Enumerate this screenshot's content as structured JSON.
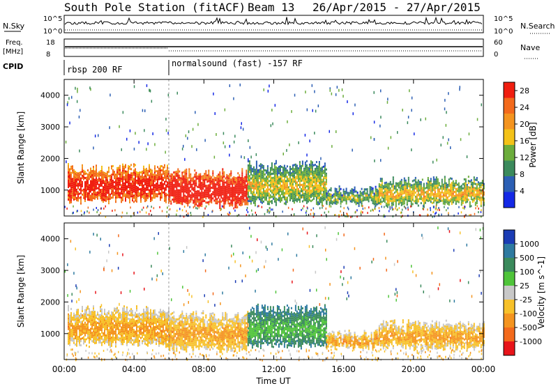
{
  "header": {
    "station": "South Pole Station (fitACF)",
    "beam": "Beam 13",
    "date_range": "26/Apr/2015 - 27/Apr/2015"
  },
  "strips": {
    "nsky_label": "N.Sky",
    "nsearch_label": "N.Search",
    "noise_ticks_left": [
      "10^5",
      "10^0"
    ],
    "noise_ticks_right": [
      "10^5",
      "10^0"
    ],
    "freq_label_1": "Freq.",
    "freq_label_2": "[MHz]",
    "freq_ticks": [
      "18",
      "8"
    ],
    "nave_label": "Nave",
    "nave_ticks": [
      "60",
      "0"
    ],
    "cpid_label": "CPID",
    "cpid_modes": [
      {
        "label": "rbsp 200 RF",
        "start_hour": 0,
        "end_hour": 6
      },
      {
        "label": "normalsound (fast) -157 RF",
        "start_hour": 6,
        "end_hour": 24
      }
    ]
  },
  "chart_data": [
    {
      "type": "heatmap",
      "quantity": "power",
      "xlabel": "Time UT",
      "ylabel": "Slant Range [km]",
      "x_ticks": [
        "00:00",
        "04:00",
        "08:00",
        "12:00",
        "16:00",
        "20:00",
        "00:00"
      ],
      "x_range_hours": [
        0,
        24
      ],
      "y_ticks": [
        1000,
        2000,
        3000,
        4000
      ],
      "y_range_km": [
        180,
        4500
      ],
      "colorbar": {
        "label": "Power [dB]",
        "ticks": [
          4,
          8,
          12,
          16,
          20,
          24,
          28
        ],
        "range": [
          0,
          30
        ],
        "colors": [
          "#1428e6",
          "#2c5fb4",
          "#3b8a5c",
          "#6cad3c",
          "#f3c218",
          "#f4941f",
          "#f36a1c",
          "#f01e10"
        ]
      },
      "echo_bands": [
        {
          "t0": 0.2,
          "t1": 6.0,
          "r0": 700,
          "r1": 1700,
          "level": 25
        },
        {
          "t0": 6.0,
          "t1": 10.5,
          "r0": 550,
          "r1": 1550,
          "level": 28
        },
        {
          "t0": 10.5,
          "t1": 15.0,
          "r0": 650,
          "r1": 1800,
          "level": 12
        },
        {
          "t0": 15.0,
          "t1": 18.0,
          "r0": 600,
          "r1": 1000,
          "level": 10
        },
        {
          "t0": 18.0,
          "t1": 24.0,
          "r0": 600,
          "r1": 1300,
          "level": 14
        }
      ]
    },
    {
      "type": "heatmap",
      "quantity": "velocity",
      "xlabel": "Time UT",
      "ylabel": "Slant Range [km]",
      "x_ticks": [
        "00:00",
        "04:00",
        "08:00",
        "12:00",
        "16:00",
        "20:00",
        "00:00"
      ],
      "x_range_hours": [
        0,
        24
      ],
      "y_ticks": [
        1000,
        2000,
        3000,
        4000
      ],
      "y_range_km": [
        180,
        4500
      ],
      "colorbar": {
        "label": "Velocity [m s^-1]",
        "ticks": [
          "1000",
          "500",
          "100",
          "25",
          "-25",
          "-100",
          "-500",
          "-1000"
        ],
        "colors": [
          "#1b3cb4",
          "#2e7aa0",
          "#3b8a5c",
          "#4fc43a",
          "#c8c8c8",
          "#f7c12a",
          "#f4941f",
          "#f36a1c",
          "#e8141a"
        ]
      },
      "echo_bands": [
        {
          "t0": 0.2,
          "t1": 6.0,
          "r0": 700,
          "r1": 1750,
          "level": -100
        },
        {
          "t0": 6.0,
          "t1": 10.5,
          "r0": 550,
          "r1": 1600,
          "level": -100
        },
        {
          "t0": 10.5,
          "t1": 15.0,
          "r0": 650,
          "r1": 1800,
          "level": 100
        },
        {
          "t0": 15.0,
          "t1": 18.0,
          "r0": 600,
          "r1": 1000,
          "level": -100
        },
        {
          "t0": 18.0,
          "t1": 24.0,
          "r0": 600,
          "r1": 1300,
          "level": -100
        }
      ]
    }
  ]
}
